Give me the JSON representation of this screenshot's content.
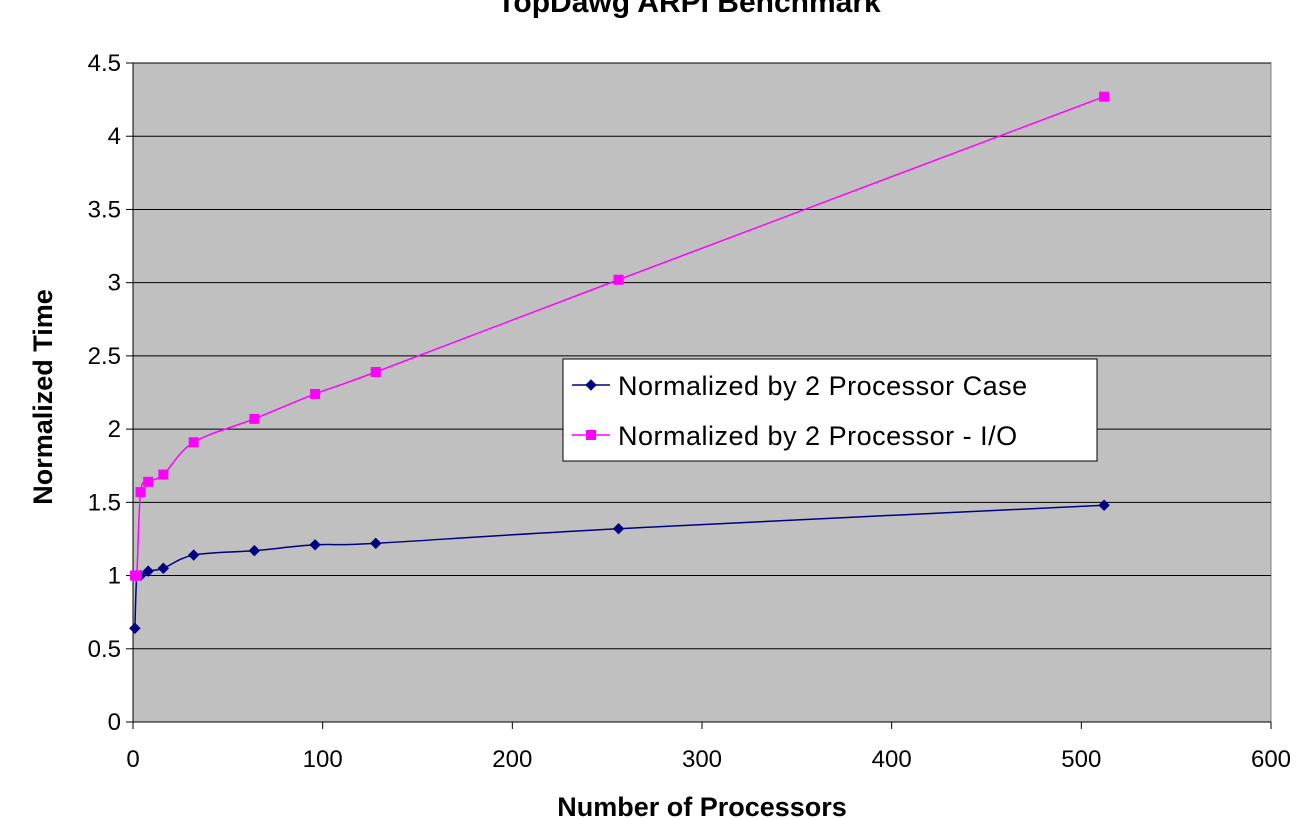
{
  "chart_data": {
    "type": "scatter",
    "title": "TopDawg ARPI Benchmark",
    "xlabel": "Number of Processors",
    "ylabel": "Normalized Time",
    "xlim": [
      0,
      600
    ],
    "ylim": [
      0,
      4.5
    ],
    "xticks": [
      0,
      100,
      200,
      300,
      400,
      500,
      600
    ],
    "yticks": [
      0,
      0.5,
      1,
      1.5,
      2,
      2.5,
      3,
      3.5,
      4,
      4.5
    ],
    "xtick_labels": [
      "0",
      "100",
      "200",
      "300",
      "400",
      "500",
      "600"
    ],
    "ytick_labels": [
      "0",
      "0.5",
      "1",
      "1.5",
      "2",
      "2.5",
      "3",
      "3.5",
      "4",
      "4.5"
    ],
    "grid": "horizontal",
    "plot_background": "#c0c0c0",
    "legend_position": "center-right",
    "series": [
      {
        "name": "Normalized by 2 Processor Case",
        "color": "#000080",
        "marker": "diamond",
        "x": [
          1,
          2,
          4,
          8,
          16,
          32,
          64,
          96,
          128,
          256,
          512
        ],
        "y": [
          0.64,
          1.0,
          1.0,
          1.03,
          1.05,
          1.14,
          1.17,
          1.21,
          1.22,
          1.32,
          1.48
        ]
      },
      {
        "name": "Normalized by 2 Processor - I/O",
        "color": "#ff00ff",
        "marker": "square",
        "x": [
          1,
          2,
          4,
          8,
          16,
          32,
          64,
          96,
          128,
          256,
          512
        ],
        "y": [
          1.0,
          1.0,
          1.57,
          1.64,
          1.69,
          1.91,
          2.07,
          2.24,
          2.39,
          3.02,
          4.27
        ]
      }
    ]
  }
}
